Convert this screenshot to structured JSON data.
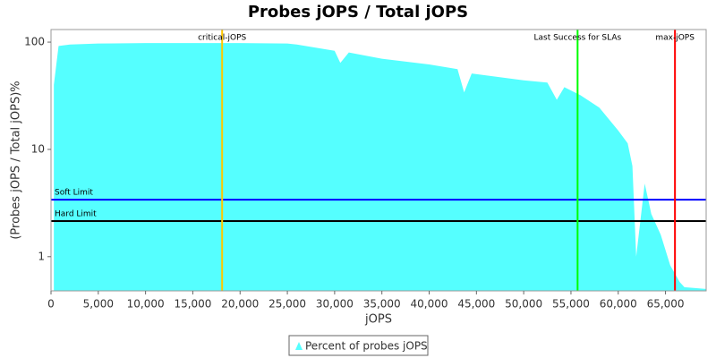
{
  "chart_data": {
    "type": "area",
    "title": "Probes jOPS / Total jOPS",
    "x_label": "jOPS",
    "y_label": "(Probes jOPS / Total jOPS)%",
    "log_y": true,
    "xlim": [
      0,
      69300
    ],
    "ylim": [
      0.48,
      131
    ],
    "xticks": [
      0,
      {
        "value": 5000,
        "label": "5,000"
      },
      {
        "value": 10000,
        "label": "10,000"
      },
      {
        "value": 15000,
        "label": "15,000"
      },
      {
        "value": 20000,
        "label": "20,000"
      },
      {
        "value": 25000,
        "label": "25,000"
      },
      {
        "value": 30000,
        "label": "30,000"
      },
      {
        "value": 35000,
        "label": "35,000"
      },
      {
        "value": 40000,
        "label": "40,000"
      },
      {
        "value": 45000,
        "label": "45,000"
      },
      {
        "value": 50000,
        "label": "50,000"
      },
      {
        "value": 55000,
        "label": "55,000"
      },
      {
        "value": 60000,
        "label": "60,000"
      },
      {
        "value": 65000,
        "label": "65,000"
      }
    ],
    "yticks": [
      1,
      10,
      100
    ],
    "x": [
      300,
      800,
      2000,
      5000,
      10000,
      15000,
      20000,
      25000,
      26000,
      30000,
      30600,
      31500,
      35000,
      40000,
      43000,
      43700,
      44500,
      50000,
      52500,
      53500,
      54300,
      56000,
      58000,
      60000,
      61000,
      61500,
      61900,
      62800,
      63500,
      64500,
      65500,
      66500,
      67000,
      69300
    ],
    "series": [
      {
        "name": "Percent of probes jOPS",
        "color": "#55ffff",
        "values": [
          40,
          92,
          95,
          97,
          98,
          98,
          98,
          97,
          95,
          83,
          64,
          80,
          70,
          62,
          56,
          34,
          51,
          44,
          42,
          29,
          38,
          32,
          24.5,
          15,
          11.4,
          7,
          1.0,
          4.8,
          2.5,
          1.6,
          0.83,
          0.58,
          0.52,
          0.5
        ]
      }
    ],
    "vlines": [
      {
        "label": "critical-jOPS",
        "value": 18100,
        "color": "#ffc800"
      },
      {
        "label": "Last Success for SLAs",
        "value": 55700,
        "color": "#00ff00"
      },
      {
        "label": "max-jOPS",
        "value": 66000,
        "color": "#ff0000"
      }
    ],
    "hlines": [
      {
        "label": "Soft Limit",
        "value": 3.4,
        "color": "#0000ff"
      },
      {
        "label": "Hard Limit",
        "value": 2.15,
        "color": "#000000"
      }
    ],
    "legend": "bottom"
  }
}
